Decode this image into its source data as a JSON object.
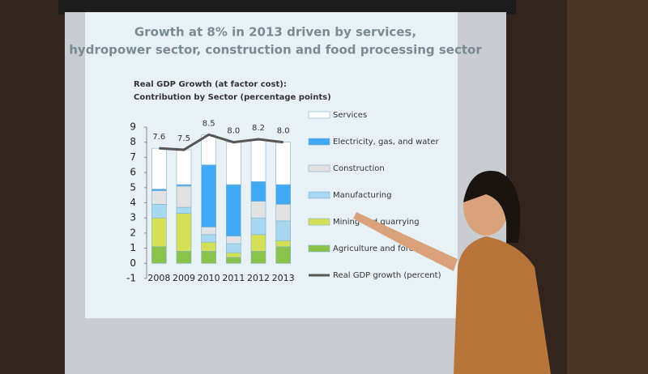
{
  "chart_data": {
    "type": "bar",
    "stacked": true,
    "title": [
      "Growth at 8% in 2013 driven by services,",
      "hydropower sector, construction and food processing sector"
    ],
    "subtitle": [
      "Real GDP Growth (at factor cost):",
      "Contribution by Sector (percentage points)"
    ],
    "categories": [
      "2008",
      "2009",
      "2010",
      "2011",
      "2012",
      "2013"
    ],
    "series": [
      {
        "name": "Agriculture and forestry",
        "color": "#8bc34a",
        "values": [
          1.1,
          0.8,
          0.8,
          0.4,
          0.8,
          1.1
        ]
      },
      {
        "name": "Mining and quarrying",
        "color": "#d4e157",
        "values": [
          1.9,
          2.5,
          0.6,
          0.3,
          1.1,
          0.4
        ]
      },
      {
        "name": "Manufacturing",
        "color": "#a8d8f0",
        "values": [
          0.9,
          0.4,
          0.5,
          0.6,
          1.1,
          1.3
        ]
      },
      {
        "name": "Construction",
        "color": "#e2e2e2",
        "values": [
          0.9,
          1.4,
          0.5,
          0.5,
          1.1,
          1.1
        ]
      },
      {
        "name": "Electricity, gas, and water",
        "color": "#3fa9f5",
        "values": [
          0.1,
          0.1,
          4.1,
          3.4,
          1.3,
          1.3
        ]
      },
      {
        "name": "Services",
        "color": "#ffffff",
        "values": [
          2.7,
          2.3,
          2.0,
          2.8,
          2.8,
          2.8
        ]
      }
    ],
    "line": {
      "name": "Real GDP growth (percent)",
      "color": "#555555",
      "values": [
        7.6,
        7.5,
        8.5,
        8.0,
        8.2,
        8.0
      ],
      "value_labels": [
        "7.6",
        "7.5",
        "8.5",
        "8.0",
        "8.2",
        "8.0"
      ]
    },
    "ylim": [
      -1,
      9
    ],
    "yticks": [
      -1,
      0,
      1,
      2,
      3,
      4,
      5,
      6,
      7,
      8,
      9
    ],
    "grid": false
  }
}
